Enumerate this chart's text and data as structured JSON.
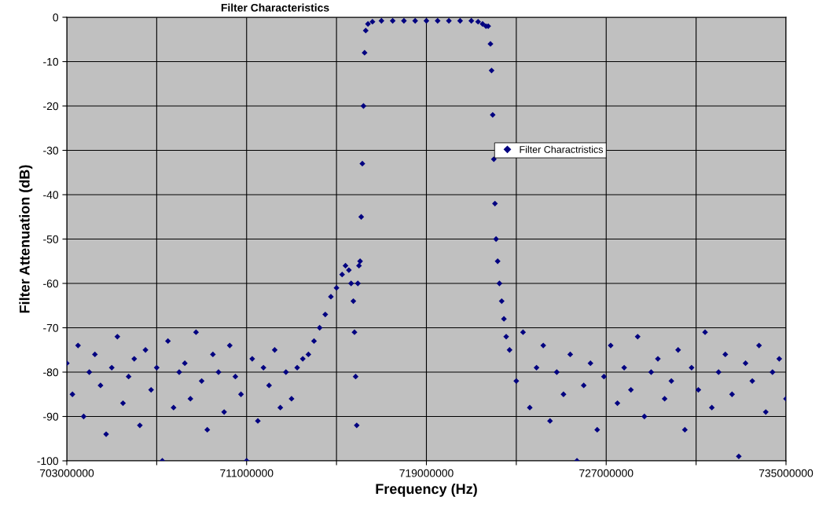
{
  "chart_data": {
    "type": "scatter",
    "title": "Filter Characteristics",
    "xlabel": "Frequency (Hz)",
    "ylabel": "Filter Attenuation (dB)",
    "xlim": [
      703000000,
      735000000
    ],
    "xticks": [
      703000000,
      {
        "value": 707000000,
        "label": null
      },
      711000000,
      {
        "value": 715000000,
        "label": null
      },
      719000000,
      {
        "value": 723000000,
        "label": null
      },
      727000000,
      {
        "value": 731000000,
        "label": null
      },
      735000000
    ],
    "ylim": [
      -100,
      0
    ],
    "yticks": [
      -100,
      -90,
      -80,
      -70,
      -60,
      -50,
      -40,
      -30,
      -20,
      -10,
      0
    ],
    "grid": true,
    "legend": "right",
    "marker": "diamond",
    "series": [
      {
        "name": "Filter Charactristics",
        "color": "#000080",
        "x": [
          703000000,
          703250000,
          703500000,
          703750000,
          704000000,
          704250000,
          704500000,
          704750000,
          705000000,
          705250000,
          705500000,
          705750000,
          706000000,
          706250000,
          706500000,
          706750000,
          707000000,
          707250000,
          707500000,
          707750000,
          708000000,
          708250000,
          708500000,
          708750000,
          709000000,
          709250000,
          709500000,
          709750000,
          710000000,
          710250000,
          710500000,
          710750000,
          711000000,
          711250000,
          711500000,
          711750000,
          712000000,
          712250000,
          712500000,
          712750000,
          713000000,
          713250000,
          713500000,
          713750000,
          714000000,
          714250000,
          714500000,
          714750000,
          715000000,
          715250000,
          715400000,
          715550000,
          715650000,
          715750000,
          715800000,
          715850000,
          715900000,
          715950000,
          716000000,
          716050000,
          716100000,
          716150000,
          716200000,
          716250000,
          716300000,
          716400000,
          716600000,
          717000000,
          717500000,
          718000000,
          718500000,
          719000000,
          719500000,
          720000000,
          720500000,
          721000000,
          721300000,
          721500000,
          721650000,
          721750000,
          721850000,
          721900000,
          721950000,
          722000000,
          722050000,
          722100000,
          722170000,
          722250000,
          722350000,
          722450000,
          722550000,
          722700000,
          723000000,
          723300000,
          723600000,
          723900000,
          724200000,
          724500000,
          724800000,
          725100000,
          725400000,
          725700000,
          726000000,
          726300000,
          726600000,
          726900000,
          727200000,
          727500000,
          727800000,
          728100000,
          728400000,
          728700000,
          729000000,
          729300000,
          729600000,
          729900000,
          730200000,
          730500000,
          730800000,
          731100000,
          731400000,
          731700000,
          732000000,
          732300000,
          732600000,
          732900000,
          733200000,
          733500000,
          733800000,
          734100000,
          734400000,
          734700000,
          735000000
        ],
        "values": [
          -78,
          -85,
          -74,
          -90,
          -80,
          -76,
          -83,
          -94,
          -79,
          -72,
          -87,
          -81,
          -77,
          -92,
          -75,
          -84,
          -79,
          -100,
          -73,
          -88,
          -80,
          -78,
          -86,
          -71,
          -82,
          -93,
          -76,
          -80,
          -89,
          -74,
          -81,
          -85,
          -100,
          -77,
          -91,
          -79,
          -83,
          -75,
          -88,
          -80,
          -86,
          -79,
          -77,
          -76,
          -73,
          -70,
          -67,
          -63,
          -61,
          -58,
          -56,
          -57,
          -60,
          -64,
          -71,
          -81,
          -92,
          -60,
          -56,
          -55,
          -45,
          -33,
          -20,
          -8,
          -3,
          -1.5,
          -1,
          -0.8,
          -0.8,
          -0.8,
          -0.8,
          -0.8,
          -0.8,
          -0.8,
          -0.8,
          -0.8,
          -1,
          -1.5,
          -2,
          -2,
          -6,
          -12,
          -22,
          -32,
          -42,
          -50,
          -55,
          -60,
          -64,
          -68,
          -72,
          -75,
          -82,
          -71,
          -88,
          -79,
          -74,
          -91,
          -80,
          -85,
          -76,
          -100,
          -83,
          -78,
          -93,
          -81,
          -74,
          -87,
          -79,
          -84,
          -72,
          -90,
          -80,
          -77,
          -86,
          -82,
          -75,
          -93,
          -79,
          -84,
          -71,
          -88,
          -80,
          -76,
          -85,
          -99,
          -78,
          -82,
          -74,
          -89,
          -80,
          -77,
          -86
        ]
      }
    ]
  }
}
